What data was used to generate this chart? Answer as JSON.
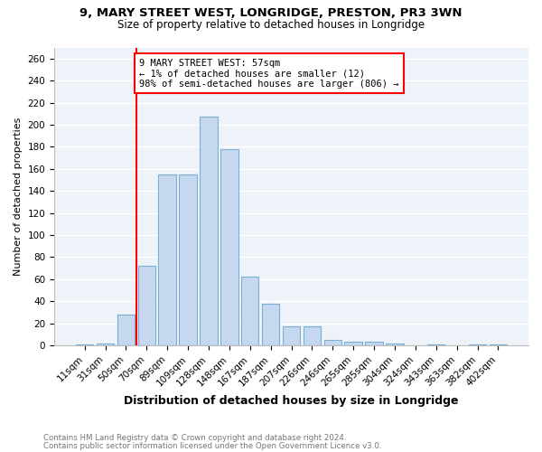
{
  "title_line1": "9, MARY STREET WEST, LONGRIDGE, PRESTON, PR3 3WN",
  "title_line2": "Size of property relative to detached houses in Longridge",
  "xlabel": "Distribution of detached houses by size in Longridge",
  "ylabel": "Number of detached properties",
  "footnote_line1": "Contains HM Land Registry data © Crown copyright and database right 2024.",
  "footnote_line2": "Contains public sector information licensed under the Open Government Licence v3.0.",
  "annotation_title": "9 MARY STREET WEST: 57sqm",
  "annotation_line1": "← 1% of detached houses are smaller (12)",
  "annotation_line2": "98% of semi-detached houses are larger (806) →",
  "bar_labels": [
    "11sqm",
    "31sqm",
    "50sqm",
    "70sqm",
    "89sqm",
    "109sqm",
    "128sqm",
    "148sqm",
    "167sqm",
    "187sqm",
    "207sqm",
    "226sqm",
    "246sqm",
    "265sqm",
    "285sqm",
    "304sqm",
    "324sqm",
    "343sqm",
    "363sqm",
    "382sqm",
    "402sqm"
  ],
  "bar_values": [
    1,
    2,
    28,
    72,
    155,
    155,
    207,
    178,
    62,
    38,
    17,
    17,
    5,
    3,
    3,
    2,
    0,
    1,
    0,
    1,
    1
  ],
  "bar_color": "#c5d8f0",
  "bar_edge_color": "#7aafd4",
  "vline_x": 2.5,
  "ylim": [
    0,
    270
  ],
  "yticks": [
    0,
    20,
    40,
    60,
    80,
    100,
    120,
    140,
    160,
    180,
    200,
    220,
    240,
    260
  ],
  "bg_color": "#eef2f9",
  "grid_color": "#ffffff",
  "title_fontsize": 9.5,
  "subtitle_fontsize": 8.5,
  "label_fontsize": 7.5,
  "ylabel_fontsize": 8,
  "xlabel_fontsize": 9
}
